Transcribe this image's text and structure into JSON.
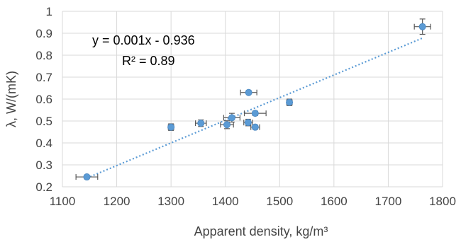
{
  "chart_data": {
    "type": "scatter",
    "xlabel": "Apparent density, kg/m³",
    "ylabel": "λ, W/(mK)",
    "xlim": [
      1100,
      1800
    ],
    "ylim": [
      0.2,
      1.0
    ],
    "x_ticks": [
      "1100",
      "1200",
      "1300",
      "1400",
      "1500",
      "1600",
      "1700",
      "1800"
    ],
    "y_ticks": [
      "0.2",
      "0.3",
      "0.4",
      "0.5",
      "0.6",
      "0.7",
      "0.8",
      "0.9",
      "1"
    ],
    "grid": true,
    "legend": "none",
    "points": [
      {
        "x": 1145,
        "y": 0.245,
        "xerr": 20,
        "yerr": 0.008
      },
      {
        "x": 1300,
        "y": 0.472,
        "xerr": 5,
        "yerr": 0.015
      },
      {
        "x": 1355,
        "y": 0.49,
        "xerr": 10,
        "yerr": 0.015
      },
      {
        "x": 1403,
        "y": 0.483,
        "xerr": 12,
        "yerr": 0.018
      },
      {
        "x": 1412,
        "y": 0.515,
        "xerr": 15,
        "yerr": 0.02
      },
      {
        "x": 1443,
        "y": 0.63,
        "xerr": 15,
        "yerr": 0.005
      },
      {
        "x": 1442,
        "y": 0.493,
        "xerr": 8,
        "yerr": 0.015
      },
      {
        "x": 1455,
        "y": 0.535,
        "xerr": 20,
        "yerr": 0.01
      },
      {
        "x": 1455,
        "y": 0.472,
        "xerr": 8,
        "yerr": 0.01
      },
      {
        "x": 1518,
        "y": 0.585,
        "xerr": 5,
        "yerr": 0.015
      },
      {
        "x": 1763,
        "y": 0.93,
        "xerr": 15,
        "yerr": 0.035
      }
    ],
    "trendline": {
      "type": "linear",
      "x_range": [
        1145,
        1763
      ],
      "y_range": [
        0.24,
        0.878
      ],
      "equation_label": "y = 0.001x - 0.936",
      "r2_label": "R² = 0.89"
    },
    "colors": {
      "marker": "#5b9bd5",
      "trendline": "#5b9bd5",
      "errorbar": "#595959",
      "grid": "#d9d9d9",
      "axis_text": "#444444"
    }
  }
}
